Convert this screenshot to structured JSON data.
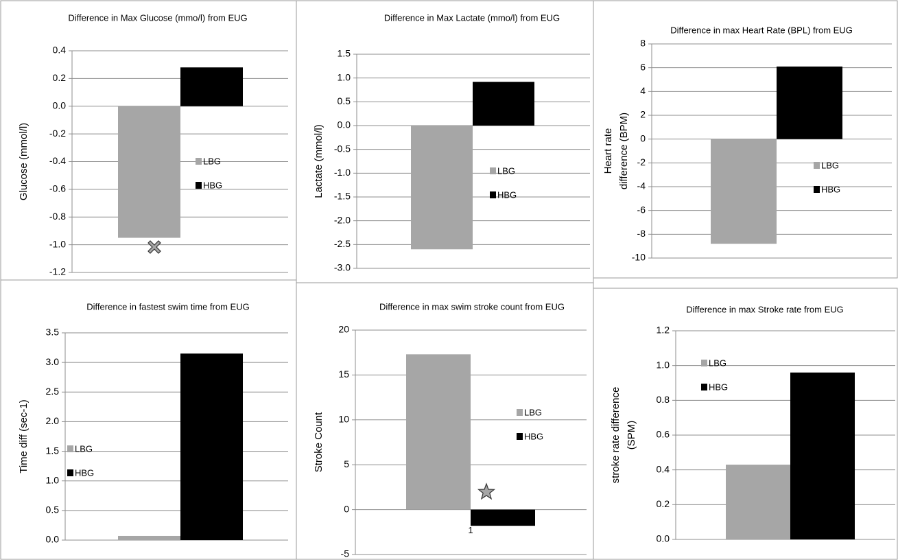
{
  "chart_data": [
    {
      "type": "bar",
      "title": "Difference in Max Glucose (mmo/l) from EUG",
      "y_label": "Glucose (mmol/l)",
      "categories": [
        null
      ],
      "series": [
        {
          "name": "LBG",
          "color": "#a6a6a6",
          "values": [
            -0.95
          ]
        },
        {
          "name": "HBG",
          "color": "#000000",
          "values": [
            0.28
          ]
        }
      ],
      "ylim": [
        -1.2,
        0.4
      ],
      "yticks": [
        -1.2,
        {
          "value": -1,
          "label": "-1.0"
        },
        -0.8,
        -0.6,
        -0.4,
        -0.2,
        {
          "value": 0,
          "label": "0.0"
        },
        0.2,
        0.4
      ],
      "grid": true
    },
    {
      "type": "bar",
      "title": "Difference in  Max Lactate (mmo/l) from EUG",
      "y_label": "Lactate (mmol/l)",
      "categories": [
        null
      ],
      "series": [
        {
          "name": "LBG",
          "color": "#a6a6a6",
          "values": [
            -2.6
          ]
        },
        {
          "name": "HBG",
          "color": "#000000",
          "values": [
            0.92
          ]
        }
      ],
      "ylim": [
        -3,
        1.5
      ],
      "yticks": [
        {
          "value": -3,
          "label": "-3.0"
        },
        -2.5,
        {
          "value": -2,
          "label": "-2.0"
        },
        -1.5,
        {
          "value": -1,
          "label": "-1.0"
        },
        -0.5,
        {
          "value": 0,
          "label": "0.0"
        },
        0.5,
        {
          "value": 1,
          "label": "1.0"
        },
        1.5
      ],
      "grid": true
    },
    {
      "type": "bar",
      "title": "Difference  in max Heart Rate (BPL) from EUG",
      "y_label": [
        "Heart rate",
        "difference (BPM)"
      ],
      "categories": [
        null
      ],
      "series": [
        {
          "name": "LBG",
          "color": "#a6a6a6",
          "values": [
            -8.8
          ]
        },
        {
          "name": "HBG",
          "color": "#000000",
          "values": [
            6.1
          ]
        }
      ],
      "ylim": [
        -10,
        8
      ],
      "yticks": [
        -10,
        -8,
        -6,
        -4,
        -2,
        0,
        2,
        4,
        6,
        8
      ],
      "grid": true
    },
    {
      "type": "bar",
      "title": "Difference in fastest swim time  from EUG",
      "y_label": "Time diff (sec-1)",
      "categories": [
        null
      ],
      "series": [
        {
          "name": "LBG",
          "color": "#a6a6a6",
          "values": [
            0.07
          ]
        },
        {
          "name": "HBG",
          "color": "#000000",
          "values": [
            3.15
          ]
        }
      ],
      "ylim": [
        0,
        3.5
      ],
      "yticks": [
        {
          "value": 0,
          "label": "0.0"
        },
        0.5,
        {
          "value": 1,
          "label": "1.0"
        },
        1.5,
        {
          "value": 2,
          "label": "2.0"
        },
        2.5,
        {
          "value": 3,
          "label": "3.0"
        },
        3.5
      ],
      "grid": true
    },
    {
      "type": "bar",
      "title": "Difference  in max swim stroke count  from EUG",
      "y_label": "Stroke Count",
      "categories": [
        "1"
      ],
      "series": [
        {
          "name": "LBG",
          "color": "#a6a6a6",
          "values": [
            17.3
          ]
        },
        {
          "name": "HBG",
          "color": "#000000",
          "values": [
            -1.8
          ]
        }
      ],
      "ylim": [
        -5,
        20
      ],
      "yticks": [
        -5,
        0,
        5,
        10,
        15,
        20
      ],
      "grid": true
    },
    {
      "type": "bar",
      "title": "Difference  in max Stroke rate from EUG",
      "y_label": [
        "stroke rate difference",
        "(SPM)"
      ],
      "categories": [
        null
      ],
      "series": [
        {
          "name": "LBG",
          "color": "#a6a6a6",
          "values": [
            0.43
          ]
        },
        {
          "name": "HBG",
          "color": "#000000",
          "values": [
            0.96
          ]
        }
      ],
      "ylim": [
        0,
        1.2
      ],
      "yticks": [
        {
          "value": 0,
          "label": "0.0"
        },
        0.2,
        0.4,
        0.6,
        0.8,
        {
          "value": 1,
          "label": "1.0"
        },
        1.2
      ],
      "grid": true
    }
  ]
}
